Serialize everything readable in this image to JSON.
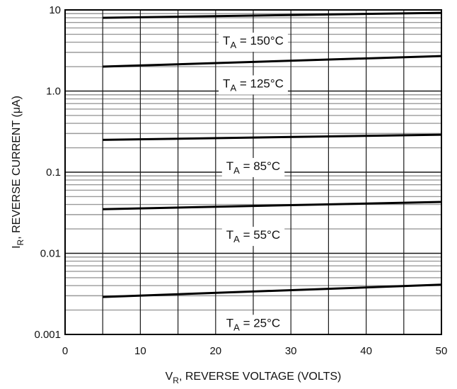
{
  "chart_data": {
    "type": "line",
    "title": "",
    "xlabel": {
      "main": "V",
      "sub": "R",
      "rest": ", REVERSE VOLTAGE (VOLTS)"
    },
    "ylabel": {
      "main": "I",
      "sub": "R",
      "rest": ", REVERSE CURRENT (μA)"
    },
    "xlim": [
      0,
      50
    ],
    "ylim": [
      0.001,
      10
    ],
    "y_scale": "log",
    "grid": true,
    "x_ticks": [
      {
        "value": 0,
        "label": "0"
      },
      {
        "value": 10,
        "label": "10"
      },
      {
        "value": 20,
        "label": "20"
      },
      {
        "value": 30,
        "label": "30"
      },
      {
        "value": 40,
        "label": "40"
      },
      {
        "value": 50,
        "label": "50"
      }
    ],
    "y_ticks": [
      {
        "value": 10,
        "label": "10"
      },
      {
        "value": 1,
        "label": "1.0"
      },
      {
        "value": 0.1,
        "label": "0.1"
      },
      {
        "value": 0.01,
        "label": "0.01"
      },
      {
        "value": 0.001,
        "label": "0.001"
      }
    ],
    "series": [
      {
        "label_parts": {
          "main": "T",
          "sub": "A",
          "rest": " = 150°C"
        },
        "x": [
          5,
          50
        ],
        "y": [
          8.0,
          9.2
        ],
        "label_at": {
          "x": 25,
          "y": 4.2
        }
      },
      {
        "label_parts": {
          "main": "T",
          "sub": "A",
          "rest": " = 125°C"
        },
        "x": [
          5,
          50
        ],
        "y": [
          2.0,
          2.7
        ],
        "label_at": {
          "x": 25,
          "y": 1.25
        }
      },
      {
        "label_parts": {
          "main": "T",
          "sub": "A",
          "rest": " = 85°C"
        },
        "x": [
          5,
          50
        ],
        "y": [
          0.25,
          0.29
        ],
        "label_at": {
          "x": 25,
          "y": 0.12
        }
      },
      {
        "label_parts": {
          "main": "T",
          "sub": "A",
          "rest": " = 55°C"
        },
        "x": [
          5,
          50
        ],
        "y": [
          0.035,
          0.043
        ],
        "label_at": {
          "x": 25,
          "y": 0.017
        }
      },
      {
        "label_parts": {
          "main": "T",
          "sub": "A",
          "rest": " = 25°C"
        },
        "x": [
          5,
          50
        ],
        "y": [
          0.0029,
          0.0041
        ],
        "label_at": {
          "x": 25,
          "y": 0.0014
        }
      }
    ]
  }
}
